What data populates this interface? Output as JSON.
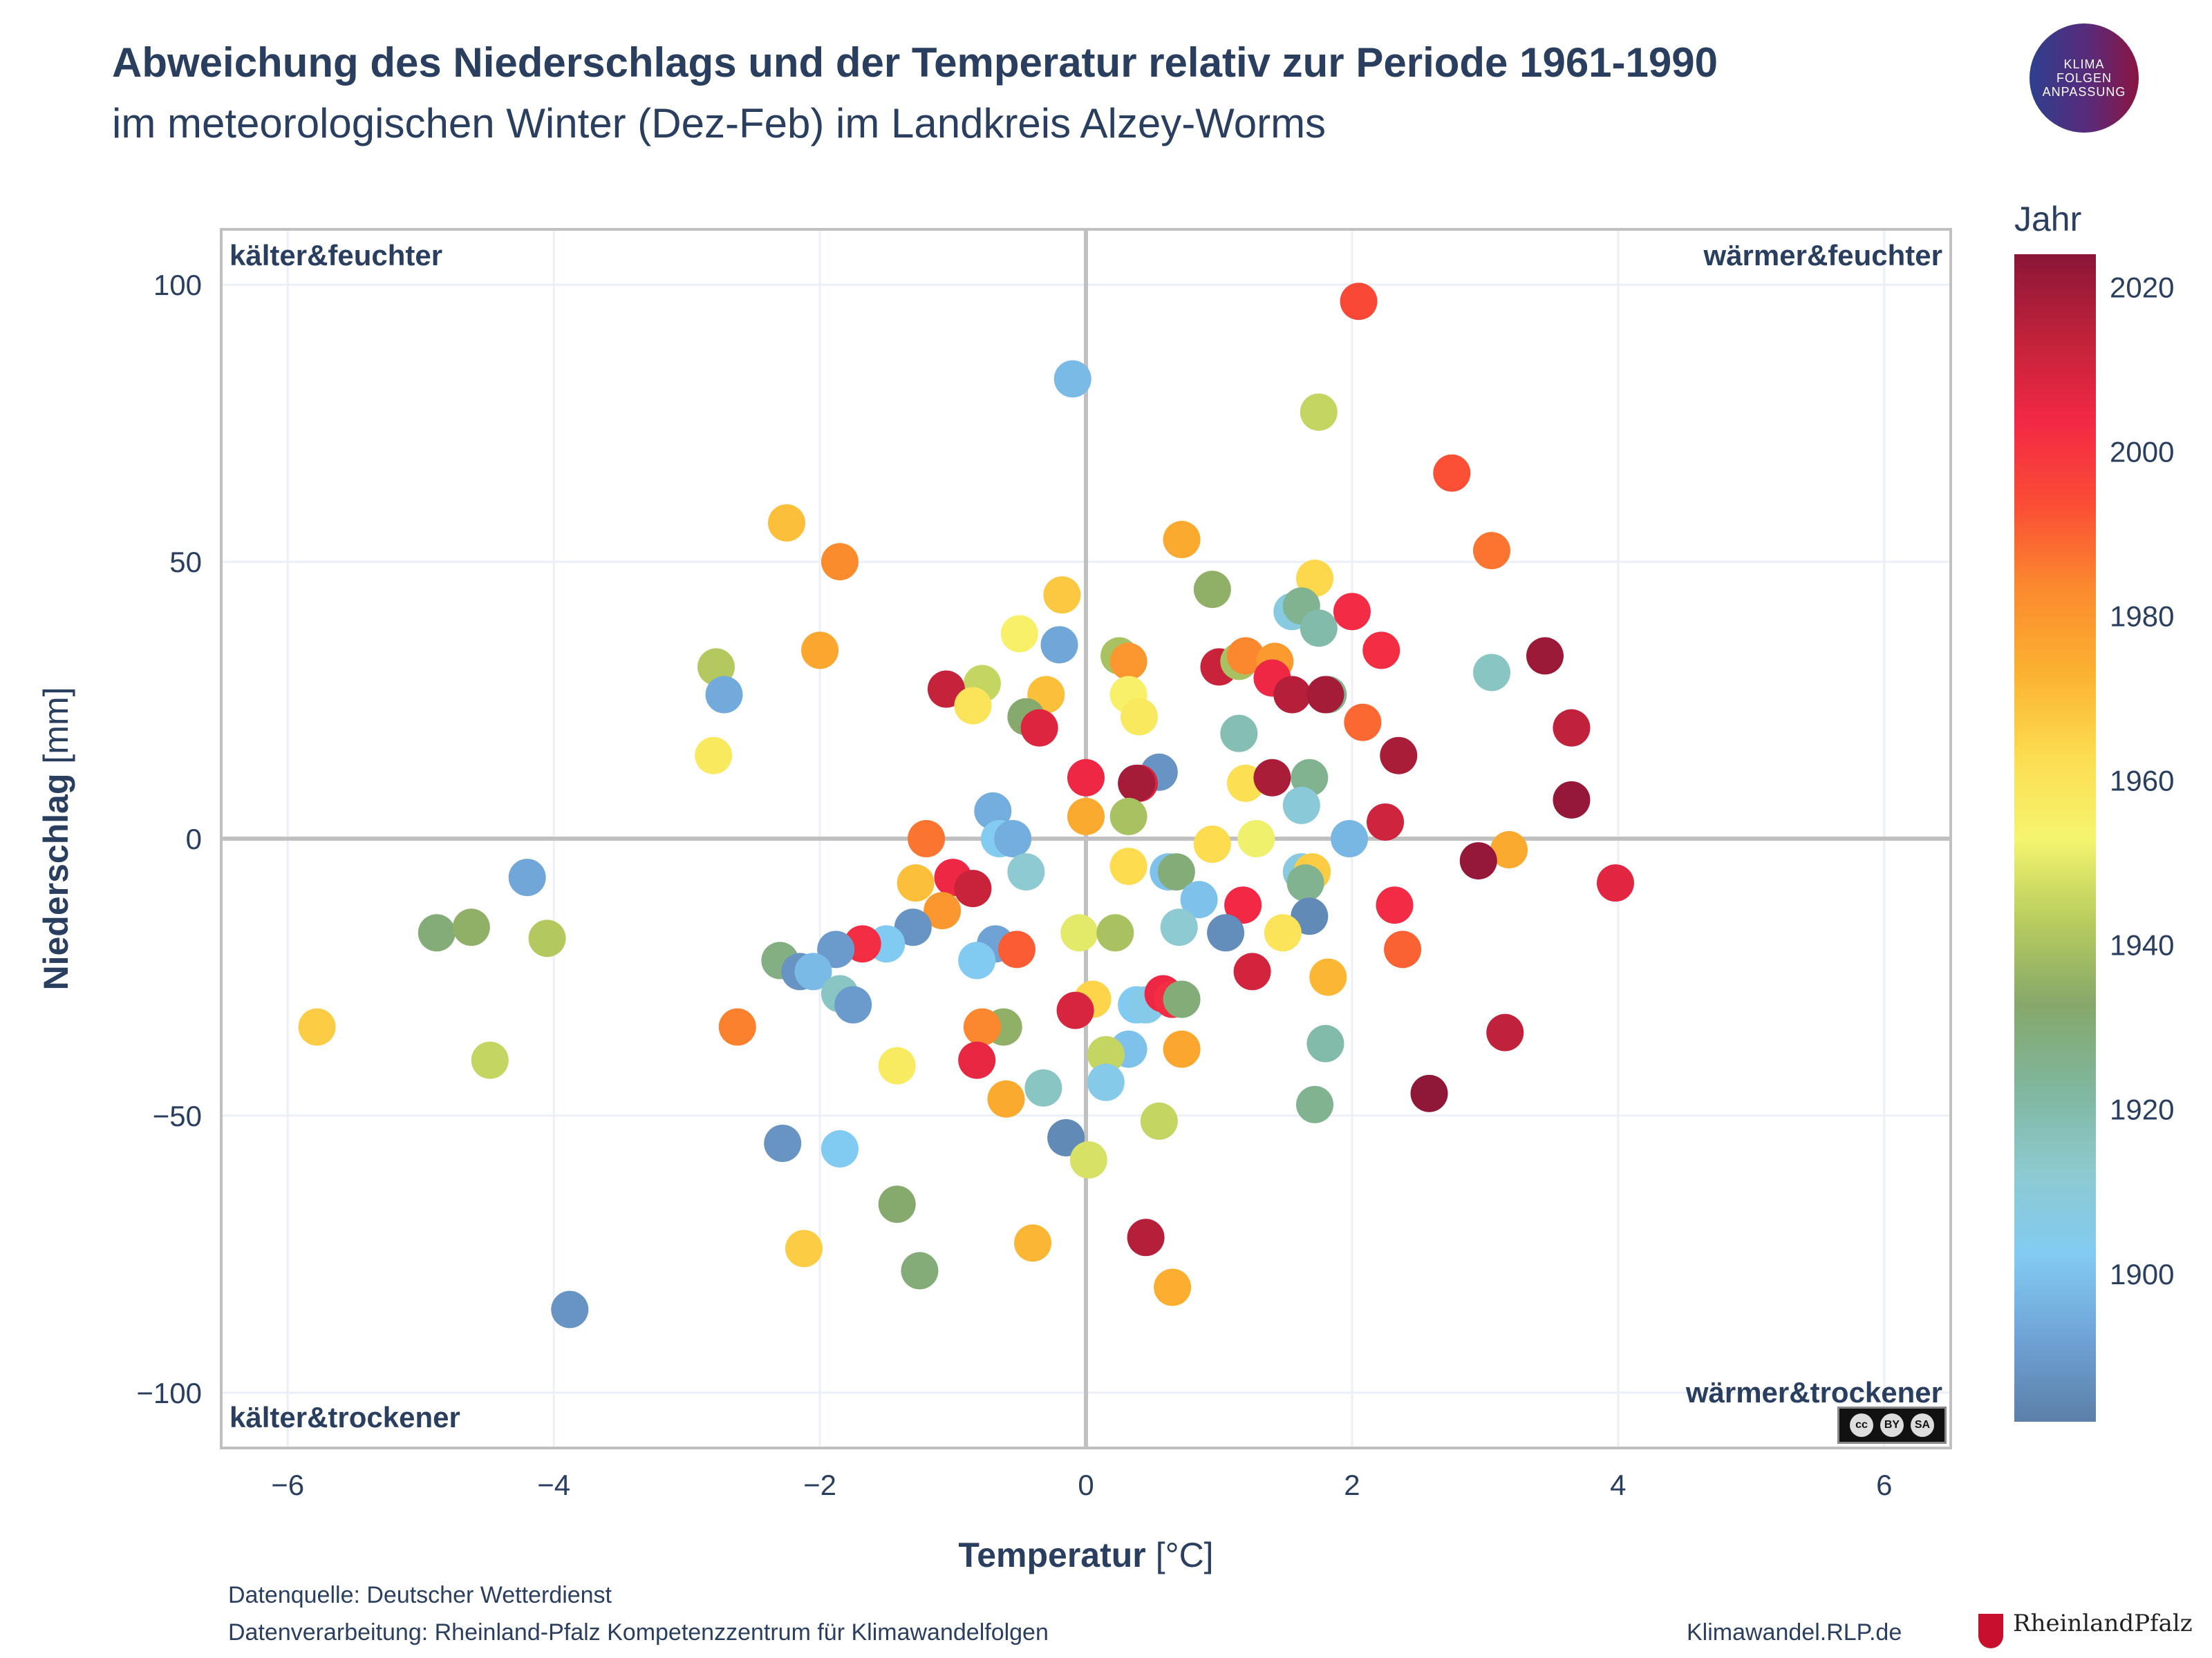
{
  "header": {
    "title": "Abweichung des Niederschlags und der Temperatur relativ zur Periode 1961-1990",
    "subtitle": "im meteorologischen Winter (Dez-Feb) im Landkreis Alzey-Worms"
  },
  "logo": {
    "line1": "KLIMA",
    "line2": "FOLGEN",
    "line3": "ANPASSUNG"
  },
  "license": {
    "label": "CC BY SA",
    "cc": "cc",
    "by": "BY",
    "sa": "SA"
  },
  "footer": {
    "source": "Datenquelle: Deutscher Wetterdienst",
    "processing": "Datenverarbeitung: Rheinland-Pfalz Kompetenzzentrum für Klimawandelfolgen",
    "website": "Klimawandel.RLP.de",
    "state_logo": "RheinlandPfalz"
  },
  "colors": {
    "colorscale": [
      "#5b7fa8",
      "#6fa3d6",
      "#82cbf2",
      "#8dcad0",
      "#7fb69d",
      "#86a86a",
      "#b7cc5e",
      "#f5f56e",
      "#fddc50",
      "#fbb130",
      "#fb8a2e",
      "#fb4d35",
      "#f32845",
      "#c0223a",
      "#8a1637"
    ],
    "axis_line": "#c0c0c0",
    "grid": "#ebf0f8",
    "text": "#2a3f5f"
  },
  "chart_data": {
    "type": "scatter",
    "title": "Abweichung des Niederschlags und der Temperatur relativ zur Periode 1961-1990",
    "subtitle": "im meteorologischen Winter (Dez-Feb) im Landkreis Alzey-Worms",
    "xlabel_bold": "Temperatur",
    "xlabel_unit": "[°C]",
    "ylabel_bold": "Niederschlag",
    "ylabel_unit": "[mm]",
    "xlim": [
      -6.5,
      6.5
    ],
    "ylim": [
      -110,
      110
    ],
    "xticks": [
      -6,
      -4,
      -2,
      0,
      2,
      4,
      6
    ],
    "xtick_labels": [
      "−6",
      "−4",
      "−2",
      "0",
      "2",
      "4",
      "6"
    ],
    "yticks": [
      -100,
      -50,
      0,
      50,
      100
    ],
    "ytick_labels": [
      "−100",
      "−50",
      "0",
      "50",
      "100"
    ],
    "grid": true,
    "quadrant_labels": {
      "top_left": "kälter&feuchter",
      "top_right": "wärmer&feuchter",
      "bottom_left": "kälter&trockener",
      "bottom_right": "wärmer&trockener"
    },
    "colorbar": {
      "title": "Jahr",
      "min": 1882,
      "max": 2024,
      "ticks": [
        1900,
        1920,
        1940,
        1960,
        1980,
        2000,
        2020
      ],
      "tick_labels": [
        "1900",
        "1920",
        "1940",
        "1960",
        "1980",
        "2000",
        "2020"
      ]
    },
    "points": [
      {
        "x": -0.1,
        "y": 83,
        "year": 1898
      },
      {
        "x": 2.05,
        "y": 97,
        "year": 1995
      },
      {
        "x": 1.75,
        "y": 77,
        "year": 1945
      },
      {
        "x": 2.75,
        "y": 66,
        "year": 1993
      },
      {
        "x": 3.05,
        "y": 52,
        "year": 1987
      },
      {
        "x": -2.25,
        "y": 57,
        "year": 1970
      },
      {
        "x": -1.85,
        "y": 50,
        "year": 1983
      },
      {
        "x": 0.72,
        "y": 54,
        "year": 1975
      },
      {
        "x": 0.95,
        "y": 45,
        "year": 1935
      },
      {
        "x": -0.18,
        "y": 44,
        "year": 1968
      },
      {
        "x": 1.72,
        "y": 47,
        "year": 1964
      },
      {
        "x": 1.55,
        "y": 41,
        "year": 1908
      },
      {
        "x": 1.62,
        "y": 42,
        "year": 1925
      },
      {
        "x": 1.75,
        "y": 38,
        "year": 1920
      },
      {
        "x": 2.0,
        "y": 41,
        "year": 2003
      },
      {
        "x": -0.5,
        "y": 37,
        "year": 1955
      },
      {
        "x": -0.2,
        "y": 35,
        "year": 1893
      },
      {
        "x": 0.25,
        "y": 33,
        "year": 1940
      },
      {
        "x": 0.32,
        "y": 32,
        "year": 1980
      },
      {
        "x": -2.0,
        "y": 34,
        "year": 1976
      },
      {
        "x": 2.22,
        "y": 34,
        "year": 2002
      },
      {
        "x": 3.05,
        "y": 30,
        "year": 1915
      },
      {
        "x": 3.45,
        "y": 33,
        "year": 2021
      },
      {
        "x": -2.78,
        "y": 31,
        "year": 1942
      },
      {
        "x": 1.0,
        "y": 31,
        "year": 2012
      },
      {
        "x": 1.15,
        "y": 32,
        "year": 1940
      },
      {
        "x": 1.2,
        "y": 33,
        "year": 1984
      },
      {
        "x": 1.42,
        "y": 32,
        "year": 1979
      },
      {
        "x": 1.4,
        "y": 29,
        "year": 2005
      },
      {
        "x": -0.78,
        "y": 28,
        "year": 1945
      },
      {
        "x": -1.05,
        "y": 27,
        "year": 2013
      },
      {
        "x": -2.72,
        "y": 26,
        "year": 1894
      },
      {
        "x": -0.3,
        "y": 26,
        "year": 1970
      },
      {
        "x": 0.32,
        "y": 26,
        "year": 1955
      },
      {
        "x": 1.55,
        "y": 26,
        "year": 2016
      },
      {
        "x": 1.82,
        "y": 26,
        "year": 1925
      },
      {
        "x": 1.8,
        "y": 26,
        "year": 2019
      },
      {
        "x": -0.85,
        "y": 24,
        "year": 1960
      },
      {
        "x": -0.45,
        "y": 22,
        "year": 1932
      },
      {
        "x": 0.4,
        "y": 22,
        "year": 1958
      },
      {
        "x": 2.08,
        "y": 21,
        "year": 1989
      },
      {
        "x": -0.35,
        "y": 20,
        "year": 2008
      },
      {
        "x": 3.65,
        "y": 20,
        "year": 2014
      },
      {
        "x": 1.15,
        "y": 19,
        "year": 1918
      },
      {
        "x": 2.35,
        "y": 15,
        "year": 2018
      },
      {
        "x": -2.8,
        "y": 15,
        "year": 1958
      },
      {
        "x": 0.55,
        "y": 12,
        "year": 1888
      },
      {
        "x": 0.0,
        "y": 11,
        "year": 2005
      },
      {
        "x": 0.4,
        "y": 10,
        "year": 2009
      },
      {
        "x": 0.38,
        "y": 10,
        "year": 2019
      },
      {
        "x": 1.2,
        "y": 10,
        "year": 1962
      },
      {
        "x": 1.4,
        "y": 11,
        "year": 2018
      },
      {
        "x": 1.68,
        "y": 11,
        "year": 1925
      },
      {
        "x": -0.7,
        "y": 5,
        "year": 1895
      },
      {
        "x": 1.62,
        "y": 6,
        "year": 1910
      },
      {
        "x": 3.65,
        "y": 7,
        "year": 2022
      },
      {
        "x": 0.0,
        "y": 4,
        "year": 1975
      },
      {
        "x": 0.32,
        "y": 4,
        "year": 1940
      },
      {
        "x": 2.25,
        "y": 3,
        "year": 2011
      },
      {
        "x": -1.2,
        "y": 0,
        "year": 1987
      },
      {
        "x": -0.65,
        "y": 0,
        "year": 1903
      },
      {
        "x": -0.55,
        "y": 0,
        "year": 1895
      },
      {
        "x": 0.95,
        "y": -1,
        "year": 1963
      },
      {
        "x": 1.28,
        "y": 0,
        "year": 1952
      },
      {
        "x": 1.98,
        "y": 0,
        "year": 1897
      },
      {
        "x": 3.18,
        "y": -2,
        "year": 1975
      },
      {
        "x": 2.95,
        "y": -4,
        "year": 2022
      },
      {
        "x": 0.32,
        "y": -5,
        "year": 1963
      },
      {
        "x": 0.62,
        "y": -6,
        "year": 1900
      },
      {
        "x": 0.68,
        "y": -6,
        "year": 1930
      },
      {
        "x": 1.62,
        "y": -6,
        "year": 1908
      },
      {
        "x": 1.7,
        "y": -6,
        "year": 1967
      },
      {
        "x": -0.45,
        "y": -6,
        "year": 1912
      },
      {
        "x": -1.28,
        "y": -8,
        "year": 1970
      },
      {
        "x": -1.0,
        "y": -7,
        "year": 2005
      },
      {
        "x": -0.85,
        "y": -9,
        "year": 2012
      },
      {
        "x": 1.65,
        "y": -8,
        "year": 1925
      },
      {
        "x": 3.98,
        "y": -8,
        "year": 2007
      },
      {
        "x": -4.2,
        "y": -7,
        "year": 1893
      },
      {
        "x": -1.08,
        "y": -13,
        "year": 1980
      },
      {
        "x": 0.85,
        "y": -11,
        "year": 1900
      },
      {
        "x": 1.18,
        "y": -12,
        "year": 2004
      },
      {
        "x": 1.68,
        "y": -14,
        "year": 1885
      },
      {
        "x": 2.32,
        "y": -12,
        "year": 2003
      },
      {
        "x": -1.3,
        "y": -16,
        "year": 1888
      },
      {
        "x": 0.7,
        "y": -16,
        "year": 1912
      },
      {
        "x": 1.05,
        "y": -17,
        "year": 1886
      },
      {
        "x": 1.48,
        "y": -17,
        "year": 1960
      },
      {
        "x": -0.05,
        "y": -17,
        "year": 1950
      },
      {
        "x": 0.22,
        "y": -17,
        "year": 1940
      },
      {
        "x": -4.88,
        "y": -17,
        "year": 1930
      },
      {
        "x": -4.62,
        "y": -16,
        "year": 1935
      },
      {
        "x": -4.05,
        "y": -18,
        "year": 1942
      },
      {
        "x": -1.5,
        "y": -19,
        "year": 1902
      },
      {
        "x": -1.68,
        "y": -19,
        "year": 2002
      },
      {
        "x": -1.88,
        "y": -20,
        "year": 1890
      },
      {
        "x": -0.68,
        "y": -19,
        "year": 1892
      },
      {
        "x": -0.52,
        "y": -20,
        "year": 1991
      },
      {
        "x": 2.38,
        "y": -20,
        "year": 1990
      },
      {
        "x": -0.82,
        "y": -22,
        "year": 1902
      },
      {
        "x": -2.3,
        "y": -22,
        "year": 1928
      },
      {
        "x": -2.15,
        "y": -24,
        "year": 1888
      },
      {
        "x": -2.05,
        "y": -24,
        "year": 1898
      },
      {
        "x": 1.25,
        "y": -24,
        "year": 2010
      },
      {
        "x": 1.82,
        "y": -25,
        "year": 1972
      },
      {
        "x": -1.85,
        "y": -28,
        "year": 1915
      },
      {
        "x": -1.75,
        "y": -30,
        "year": 1890
      },
      {
        "x": 0.05,
        "y": -29,
        "year": 1965
      },
      {
        "x": 0.38,
        "y": -30,
        "year": 1902
      },
      {
        "x": 0.45,
        "y": -30,
        "year": 1905
      },
      {
        "x": 0.58,
        "y": -28,
        "year": 2005
      },
      {
        "x": 0.65,
        "y": -29,
        "year": 2002
      },
      {
        "x": 0.72,
        "y": -29,
        "year": 1930
      },
      {
        "x": -0.08,
        "y": -31,
        "year": 2009
      },
      {
        "x": -0.62,
        "y": -34,
        "year": 1935
      },
      {
        "x": -0.78,
        "y": -34,
        "year": 1984
      },
      {
        "x": -2.62,
        "y": -34,
        "year": 1985
      },
      {
        "x": -5.78,
        "y": -34,
        "year": 1967
      },
      {
        "x": 3.15,
        "y": -35,
        "year": 2014
      },
      {
        "x": 1.8,
        "y": -37,
        "year": 1920
      },
      {
        "x": 0.72,
        "y": -38,
        "year": 1976
      },
      {
        "x": 0.32,
        "y": -38,
        "year": 1900
      },
      {
        "x": 0.15,
        "y": -39,
        "year": 1945
      },
      {
        "x": -0.82,
        "y": -40,
        "year": 2006
      },
      {
        "x": -4.48,
        "y": -40,
        "year": 1945
      },
      {
        "x": -1.42,
        "y": -41,
        "year": 1957
      },
      {
        "x": -0.32,
        "y": -45,
        "year": 1915
      },
      {
        "x": 0.15,
        "y": -44,
        "year": 1905
      },
      {
        "x": -0.6,
        "y": -47,
        "year": 1975
      },
      {
        "x": 2.58,
        "y": -46,
        "year": 2023
      },
      {
        "x": 1.72,
        "y": -48,
        "year": 1925
      },
      {
        "x": 0.55,
        "y": -51,
        "year": 1945
      },
      {
        "x": -2.28,
        "y": -55,
        "year": 1888
      },
      {
        "x": -0.15,
        "y": -54,
        "year": 1885
      },
      {
        "x": -1.85,
        "y": -56,
        "year": 1902
      },
      {
        "x": 0.02,
        "y": -58,
        "year": 1948
      },
      {
        "x": -1.42,
        "y": -66,
        "year": 1932
      },
      {
        "x": -2.12,
        "y": -74,
        "year": 1967
      },
      {
        "x": -0.4,
        "y": -73,
        "year": 1972
      },
      {
        "x": 0.45,
        "y": -72,
        "year": 2016
      },
      {
        "x": 0.65,
        "y": -81,
        "year": 1974
      },
      {
        "x": -1.25,
        "y": -78,
        "year": 1930
      },
      {
        "x": -3.88,
        "y": -85,
        "year": 1888
      }
    ]
  }
}
